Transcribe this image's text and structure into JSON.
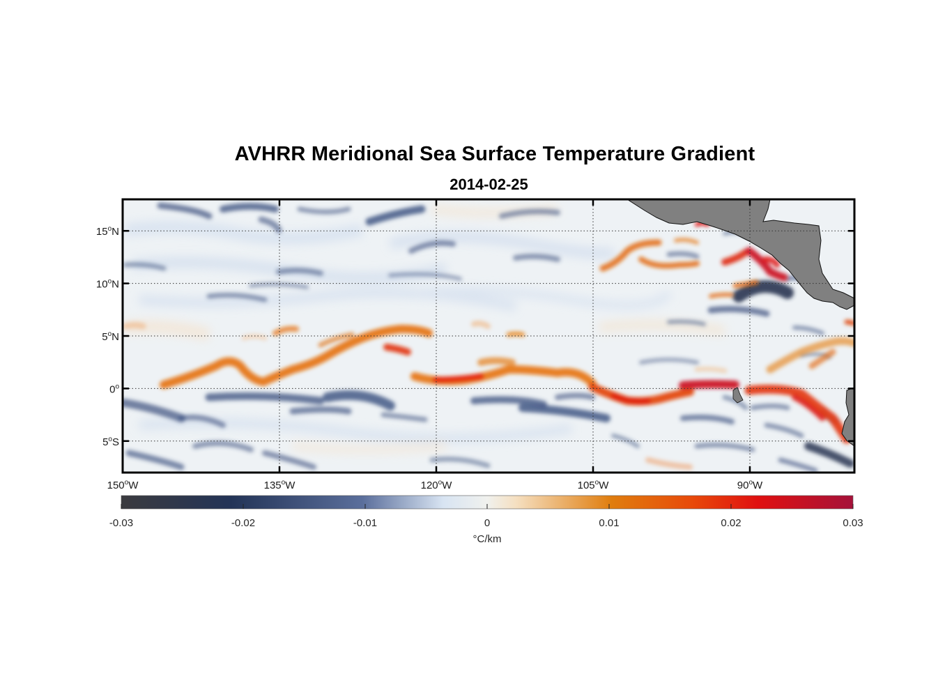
{
  "title": "AVHRR Meridional Sea Surface Temperature Gradient",
  "subtitle": "2014-02-25",
  "map": {
    "lon_range": [
      -150,
      -80
    ],
    "lat_range": [
      -8,
      18
    ],
    "lon_ticks": [
      {
        "value": -150,
        "deg": "150",
        "hemi": "W"
      },
      {
        "value": -135,
        "deg": "135",
        "hemi": "W"
      },
      {
        "value": -120,
        "deg": "120",
        "hemi": "W"
      },
      {
        "value": -105,
        "deg": "105",
        "hemi": "W"
      },
      {
        "value": -90,
        "deg": "90",
        "hemi": "W"
      }
    ],
    "lat_ticks": [
      {
        "value": 15,
        "deg": "15",
        "hemi": "N"
      },
      {
        "value": 10,
        "deg": "10",
        "hemi": "N"
      },
      {
        "value": 5,
        "deg": "5",
        "hemi": "N"
      },
      {
        "value": 0,
        "deg": "0",
        "hemi": ""
      },
      {
        "value": -5,
        "deg": "5",
        "hemi": "S"
      }
    ],
    "land_color": "#808080",
    "grid": "dotted"
  },
  "colorbar": {
    "range": [
      -0.03,
      0.03
    ],
    "ticks": [
      "-0.03",
      "-0.02",
      "-0.01",
      "0",
      "0.01",
      "0.02",
      "0.03"
    ],
    "label": "°C/km",
    "colors": [
      "#3b3b3f",
      "#233457",
      "#5b6f9c",
      "#d8e4f2",
      "#f5f0e6",
      "#f5dfc0",
      "#e07d0e",
      "#e84a0a",
      "#e01010",
      "#a5123a"
    ]
  }
}
